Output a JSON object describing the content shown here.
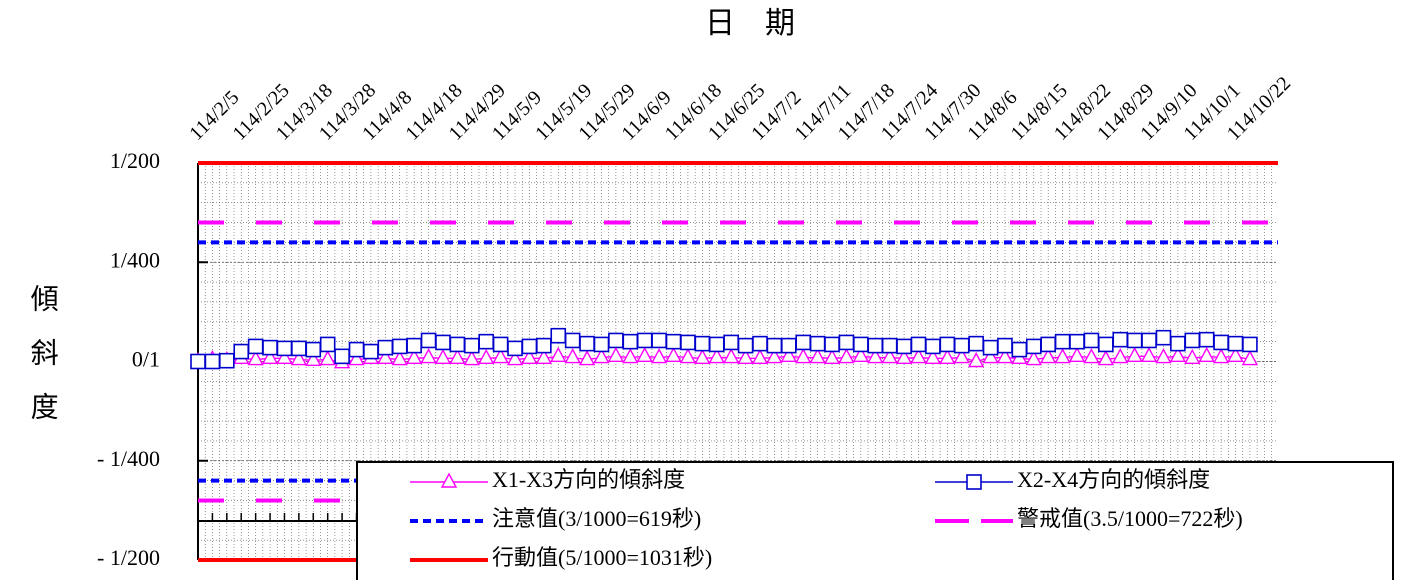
{
  "chart_data": {
    "type": "line",
    "x_label": "日　期",
    "y_label": "傾斜度",
    "categories": [
      "114/2/5",
      null,
      null,
      "114/2/25",
      null,
      null,
      "114/3/18",
      null,
      null,
      "114/3/28",
      null,
      null,
      "114/4/8",
      null,
      null,
      "114/4/18",
      null,
      null,
      "114/4/29",
      null,
      null,
      "114/5/9",
      null,
      null,
      "114/5/19",
      null,
      null,
      "114/5/29",
      null,
      null,
      "114/6/9",
      null,
      null,
      "114/6/18",
      null,
      null,
      "114/6/25",
      null,
      null,
      "114/7/2",
      null,
      null,
      "114/7/11",
      null,
      null,
      "114/7/18",
      null,
      null,
      "114/7/24",
      null,
      null,
      "114/7/30",
      null,
      null,
      "114/8/6",
      null,
      null,
      "114/8/15",
      null,
      null,
      "114/8/22",
      null,
      null,
      "114/8/29",
      null,
      null,
      "114/9/10",
      null,
      null,
      "114/10/1",
      null,
      null,
      "114/10/22",
      null
    ],
    "series": [
      {
        "name": "X1-X3方向的傾斜度",
        "color": "#ff00ff",
        "marker": "triangle",
        "values": [
          0,
          0.05,
          0.03,
          0.08,
          0.05,
          0.08,
          0.08,
          0.05,
          0.03,
          0.05,
          -0.03,
          0.05,
          0.08,
          0.08,
          0.05,
          0.08,
          0.1,
          0.08,
          0.08,
          0.05,
          0.08,
          0.1,
          0.05,
          0.08,
          0.08,
          0.13,
          0.1,
          0.05,
          0.1,
          0.13,
          0.1,
          0.13,
          0.1,
          0.13,
          0.1,
          0.08,
          0.1,
          0.1,
          0.08,
          0.08,
          0.1,
          0.13,
          0.1,
          0.1,
          0.08,
          0.1,
          0.13,
          0.1,
          0.1,
          0.08,
          0.1,
          0.08,
          0.08,
          0.1,
          0,
          0.1,
          0.1,
          0.08,
          0.05,
          0.1,
          0.1,
          0.13,
          0.1,
          0.05,
          0.1,
          0.13,
          0.13,
          0.1,
          0.13,
          0.08,
          0.13,
          0.1,
          0.13,
          0.05
        ]
      },
      {
        "name": "X2-X4方向的傾斜度",
        "color": "#0000cc",
        "marker": "square",
        "values": [
          0,
          0,
          0.02,
          0.25,
          0.38,
          0.35,
          0.33,
          0.33,
          0.3,
          0.43,
          0.13,
          0.3,
          0.25,
          0.35,
          0.38,
          0.4,
          0.53,
          0.48,
          0.43,
          0.4,
          0.5,
          0.43,
          0.33,
          0.38,
          0.4,
          0.65,
          0.53,
          0.45,
          0.43,
          0.53,
          0.5,
          0.53,
          0.53,
          0.5,
          0.48,
          0.45,
          0.43,
          0.48,
          0.4,
          0.45,
          0.4,
          0.4,
          0.48,
          0.45,
          0.43,
          0.48,
          0.43,
          0.4,
          0.4,
          0.38,
          0.43,
          0.38,
          0.43,
          0.4,
          0.45,
          0.35,
          0.4,
          0.3,
          0.38,
          0.43,
          0.5,
          0.5,
          0.53,
          0.43,
          0.55,
          0.53,
          0.53,
          0.6,
          0.45,
          0.53,
          0.55,
          0.48,
          0.45,
          0.43
        ]
      }
    ],
    "reference_lines": [
      {
        "name": "注意值(3/1000=619秒)",
        "color": "#0000ff",
        "dash": "short",
        "values": [
          3,
          -3
        ]
      },
      {
        "name": "警戒值(3.5/1000=722秒)",
        "color": "#ff00ff",
        "dash": "long",
        "values": [
          3.5,
          -3.5
        ]
      },
      {
        "name": "行動值(5/1000=1031秒)",
        "color": "#ff0000",
        "dash": "solid",
        "values": [
          5,
          -5
        ]
      }
    ],
    "ylim": [
      -5,
      5
    ],
    "yticks": [
      {
        "value": 5,
        "label": "1/200"
      },
      {
        "value": 2.5,
        "label": "1/400"
      },
      {
        "value": 0,
        "label": "0/1"
      },
      {
        "value": -2.5,
        "label": "- 1/400"
      },
      {
        "value": -5,
        "label": "- 1/200"
      }
    ],
    "grid": true
  }
}
